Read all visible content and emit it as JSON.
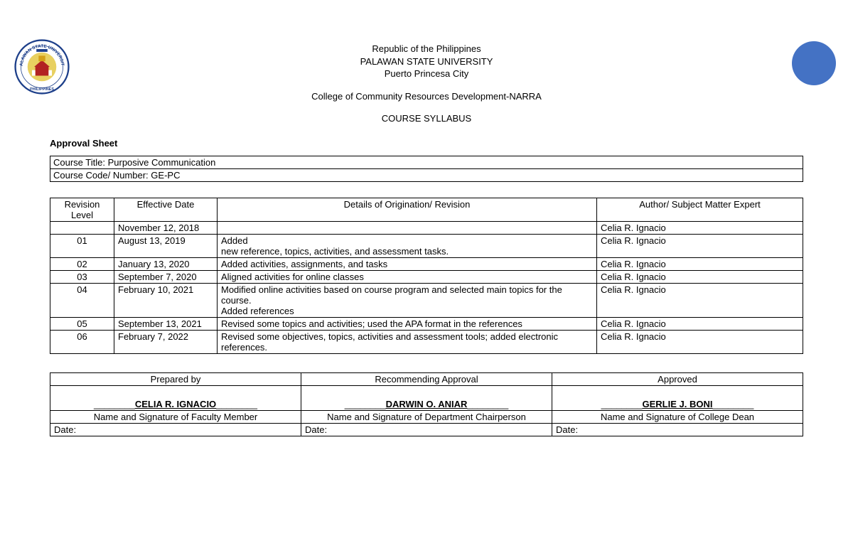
{
  "header": {
    "line1": "Republic of the Philippines",
    "line2": "PALAWAN STATE UNIVERSITY",
    "line3": "Puerto Princesa City",
    "line4": "College of Community Resources Development-NARRA",
    "line5": "COURSE SYLLABUS"
  },
  "approval_title": "Approval Sheet",
  "course": {
    "title_label": "Course Title: Purposive Communication",
    "code_label": "Course Code/ Number: GE-PC"
  },
  "rev_columns": {
    "c1": "Revision Level",
    "c2": "Effective Date",
    "c3": "Details of Origination/ Revision",
    "c4": "Author/ Subject Matter Expert"
  },
  "revisions": [
    {
      "level": "",
      "date": "November 12, 2018",
      "details": "",
      "author": "Celia R. Ignacio"
    },
    {
      "level": "01",
      "date": "August 13, 2019",
      "details": "Added\nnew reference, topics, activities, and assessment tasks.",
      "author": "Celia R. Ignacio"
    },
    {
      "level": "02",
      "date": "January 13, 2020",
      "details": "Added activities, assignments, and tasks",
      "author": "Celia R. Ignacio"
    },
    {
      "level": "03",
      "date": "September 7, 2020",
      "details": "Aligned activities for online classes",
      "author": "Celia R. Ignacio"
    },
    {
      "level": "04",
      "date": "February 10, 2021",
      "details": "Modified online activities based on course program and selected main topics for the course.\nAdded references",
      "author": "Celia R. Ignacio"
    },
    {
      "level": "05",
      "date": "September 13, 2021",
      "details": "Revised some topics and activities; used the APA format in the references",
      "author": "Celia R. Ignacio"
    },
    {
      "level": "06",
      "date": "February 7, 2022",
      "details": "Revised some objectives, topics, activities and assessment tools; added electronic references.",
      "author": "Celia R. Ignacio"
    }
  ],
  "sig_header": {
    "c1": "Prepared by",
    "c2": "Recommending Approval",
    "c3": "Approved"
  },
  "sig": {
    "n1": "CELIA R. IGNACIO",
    "n2": "DARWIN O. ANIAR",
    "n3": "GERLIE J. BONI",
    "r1": "Name and Signature of Faculty Member",
    "r2": "Name and Signature of Department Chairperson",
    "r3": "Name and Signature of College Dean",
    "date": "Date:"
  },
  "colors": {
    "accent": "#4472c4",
    "seal_blue": "#1d3f8a",
    "seal_gold": "#d4a017",
    "seal_red": "#b22222"
  }
}
